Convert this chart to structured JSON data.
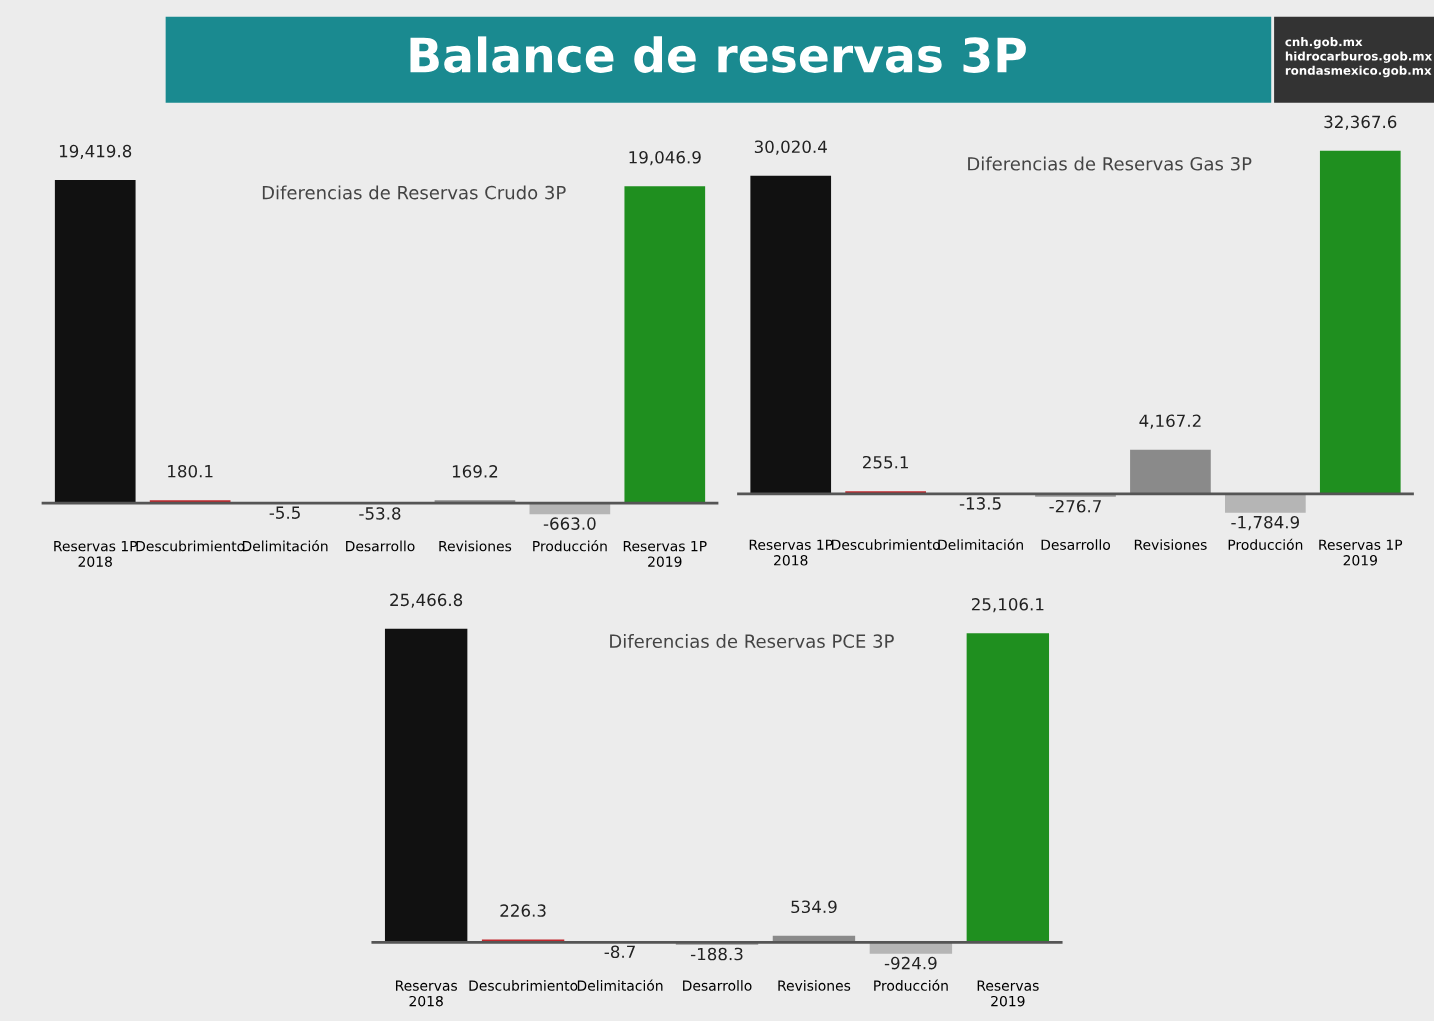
{
  "chart_data": [
    {
      "type": "other",
      "title": "Balance de reservas 3P",
      "annotations": [
        "cnh.gob.mx",
        "hidrocarburos.gob.mx",
        "rondasmexico.gob.mx"
      ]
    },
    {
      "type": "bar",
      "title": "Diferencias de Reservas Crudo 3P",
      "categories": [
        "Reservas 1P\n2018",
        "Descubrimiento",
        "Delimitación",
        "Desarrollo",
        "Revisiones",
        "Producción",
        "Reservas 1P\n2019"
      ],
      "values": [
        19419.8,
        180.1,
        -5.5,
        -53.8,
        169.2,
        -663.0,
        19046.9
      ],
      "value_labels": [
        "19,419.8",
        "180.1",
        "-5.5",
        "-53.8",
        "169.2",
        "-663.0",
        "19,046.9"
      ],
      "colors": [
        "#111111",
        "#c0272d",
        "#9a9a9a",
        "#9a9a9a",
        "#8a8a8a",
        "#b5b5b5",
        "#1f8f1f"
      ],
      "tick_labels": "x"
    },
    {
      "type": "bar",
      "title": "Diferencias de Reservas Gas 3P",
      "categories": [
        "Reservas 1P\n2018",
        "Descubrimiento",
        "Delimitación",
        "Desarrollo",
        "Revisiones",
        "Producción",
        "Reservas 1P\n2019"
      ],
      "values": [
        30020.4,
        255.1,
        -13.5,
        -276.7,
        4167.2,
        -1784.9,
        32367.6
      ],
      "value_labels": [
        "30,020.4",
        "255.1",
        "-13.5",
        "-276.7",
        "4,167.2",
        "-1,784.9",
        "32,367.6"
      ],
      "colors": [
        "#111111",
        "#c0272d",
        "#9a9a9a",
        "#9a9a9a",
        "#8a8a8a",
        "#b5b5b5",
        "#1f8f1f"
      ],
      "tick_labels": "x"
    },
    {
      "type": "bar",
      "title": "Diferencias de Reservas PCE 3P",
      "categories": [
        "Reservas\n2018",
        "Descubrimiento",
        "Delimitación",
        "Desarrollo",
        "Revisiones",
        "Producción",
        "Reservas\n2019"
      ],
      "values": [
        25466.8,
        226.3,
        -8.7,
        -188.3,
        534.9,
        -924.9,
        25106.1
      ],
      "value_labels": [
        "25,466.8",
        "226.3",
        "-8.7",
        "-188.3",
        "534.9",
        "-924.9",
        "25,106.1"
      ],
      "colors": [
        "#111111",
        "#c0272d",
        "#9a9a9a",
        "#9a9a9a",
        "#8a8a8a",
        "#b5b5b5",
        "#1f8f1f"
      ],
      "tick_labels": "x"
    }
  ]
}
